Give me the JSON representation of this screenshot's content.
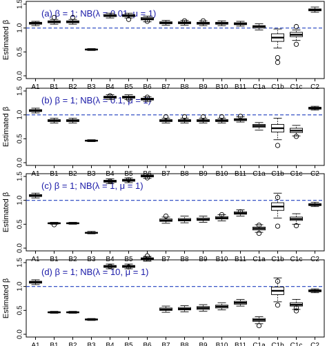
{
  "chart_data": [
    {
      "type": "boxplot",
      "title": "(a) β = 1; NB(λ = 0.01, μ = 1)",
      "ylabel": "Estimated β",
      "ylim": [
        0.0,
        1.5
      ],
      "yticks": [
        0.0,
        0.5,
        1.0,
        1.5
      ],
      "yticklabels": [
        "0.0",
        "0.5",
        "1.0",
        "1.5"
      ],
      "reference_line": 1.0,
      "categories": [
        "A1",
        "B1",
        "B2",
        "B3",
        "B4",
        "B5",
        "B6",
        "B7",
        "B8",
        "B9",
        "B10",
        "B11",
        "C1a",
        "C1b",
        "C1c",
        "C2"
      ],
      "boxes": [
        {
          "q1": 1.08,
          "med": 1.1,
          "q3": 1.12,
          "wlo": 1.05,
          "whi": 1.14,
          "out": []
        },
        {
          "q1": 1.11,
          "med": 1.13,
          "q3": 1.15,
          "wlo": 1.08,
          "whi": 1.18,
          "out": [
            1.22
          ]
        },
        {
          "q1": 1.11,
          "med": 1.13,
          "q3": 1.15,
          "wlo": 1.08,
          "whi": 1.18,
          "out": [
            1.22
          ]
        },
        {
          "q1": 0.54,
          "med": 0.55,
          "q3": 0.56,
          "wlo": 0.53,
          "whi": 0.57,
          "out": []
        },
        {
          "q1": 1.24,
          "med": 1.26,
          "q3": 1.28,
          "wlo": 1.21,
          "whi": 1.31,
          "out": []
        },
        {
          "q1": 1.24,
          "med": 1.26,
          "q3": 1.28,
          "wlo": 1.21,
          "whi": 1.31,
          "out": [
            1.18
          ]
        },
        {
          "q1": 1.17,
          "med": 1.19,
          "q3": 1.22,
          "wlo": 1.13,
          "whi": 1.25,
          "out": [
            1.14
          ]
        },
        {
          "q1": 1.09,
          "med": 1.11,
          "q3": 1.13,
          "wlo": 1.06,
          "whi": 1.16,
          "out": []
        },
        {
          "q1": 1.09,
          "med": 1.11,
          "q3": 1.13,
          "wlo": 1.06,
          "whi": 1.16,
          "out": [
            1.15
          ]
        },
        {
          "q1": 1.08,
          "med": 1.1,
          "q3": 1.12,
          "wlo": 1.05,
          "whi": 1.15,
          "out": [
            1.15
          ]
        },
        {
          "q1": 1.08,
          "med": 1.1,
          "q3": 1.12,
          "wlo": 1.05,
          "whi": 1.15,
          "out": []
        },
        {
          "q1": 1.07,
          "med": 1.09,
          "q3": 1.11,
          "wlo": 1.04,
          "whi": 1.14,
          "out": []
        },
        {
          "q1": 1.0,
          "med": 1.03,
          "q3": 1.05,
          "wlo": 0.96,
          "whi": 1.09,
          "out": []
        },
        {
          "q1": 0.72,
          "med": 0.8,
          "q3": 0.88,
          "wlo": 0.58,
          "whi": 0.98,
          "out": [
            0.38,
            0.28
          ]
        },
        {
          "q1": 0.82,
          "med": 0.86,
          "q3": 0.91,
          "wlo": 0.74,
          "whi": 0.96,
          "out": [
            1.03,
            0.66
          ]
        },
        {
          "q1": 1.36,
          "med": 1.38,
          "q3": 1.4,
          "wlo": 1.33,
          "whi": 1.44,
          "out": []
        }
      ]
    },
    {
      "type": "boxplot",
      "title": "(b) β = 1; NB(λ = 0.1, μ = 1)",
      "ylabel": "Estimated β",
      "ylim": [
        0.0,
        1.5
      ],
      "yticks": [
        0.0,
        0.5,
        1.0,
        1.5
      ],
      "yticklabels": [
        "0.0",
        "0.5",
        "1.0",
        "1.5"
      ],
      "reference_line": 1.0,
      "categories": [
        "A1",
        "B1",
        "B2",
        "B3",
        "B4",
        "B5",
        "B6",
        "B7",
        "B8",
        "B9",
        "B10",
        "B11",
        "C1a",
        "C1b",
        "C1c",
        "C2"
      ],
      "boxes": [
        {
          "q1": 1.07,
          "med": 1.09,
          "q3": 1.11,
          "wlo": 1.04,
          "whi": 1.14,
          "out": []
        },
        {
          "q1": 0.86,
          "med": 0.88,
          "q3": 0.9,
          "wlo": 0.83,
          "whi": 0.93,
          "out": []
        },
        {
          "q1": 0.86,
          "med": 0.88,
          "q3": 0.9,
          "wlo": 0.83,
          "whi": 0.93,
          "out": []
        },
        {
          "q1": 0.45,
          "med": 0.46,
          "q3": 0.47,
          "wlo": 0.44,
          "whi": 0.48,
          "out": []
        },
        {
          "q1": 1.35,
          "med": 1.37,
          "q3": 1.39,
          "wlo": 1.32,
          "whi": 1.42,
          "out": [
            1.4
          ]
        },
        {
          "q1": 1.35,
          "med": 1.37,
          "q3": 1.39,
          "wlo": 1.32,
          "whi": 1.42,
          "out": [
            1.33
          ]
        },
        {
          "q1": 1.31,
          "med": 1.33,
          "q3": 1.35,
          "wlo": 1.28,
          "whi": 1.38,
          "out": [
            1.37
          ]
        },
        {
          "q1": 0.86,
          "med": 0.88,
          "q3": 0.9,
          "wlo": 0.83,
          "whi": 0.93,
          "out": [
            0.96
          ]
        },
        {
          "q1": 0.86,
          "med": 0.88,
          "q3": 0.9,
          "wlo": 0.83,
          "whi": 0.93,
          "out": [
            0.96
          ]
        },
        {
          "q1": 0.86,
          "med": 0.88,
          "q3": 0.9,
          "wlo": 0.83,
          "whi": 0.93,
          "out": [
            0.96
          ]
        },
        {
          "q1": 0.86,
          "med": 0.88,
          "q3": 0.9,
          "wlo": 0.83,
          "whi": 0.93,
          "out": [
            0.96
          ]
        },
        {
          "q1": 0.88,
          "med": 0.9,
          "q3": 0.92,
          "wlo": 0.85,
          "whi": 0.96,
          "out": [
            0.97
          ]
        },
        {
          "q1": 0.74,
          "med": 0.77,
          "q3": 0.8,
          "wlo": 0.68,
          "whi": 0.84,
          "out": []
        },
        {
          "q1": 0.64,
          "med": 0.72,
          "q3": 0.8,
          "wlo": 0.48,
          "whi": 0.93,
          "out": [
            0.36
          ]
        },
        {
          "q1": 0.63,
          "med": 0.67,
          "q3": 0.72,
          "wlo": 0.56,
          "whi": 0.78,
          "out": [
            0.55
          ]
        },
        {
          "q1": 1.12,
          "med": 1.14,
          "q3": 1.16,
          "wlo": 1.1,
          "whi": 1.18,
          "out": []
        }
      ]
    },
    {
      "type": "boxplot",
      "title": "(c) β = 1; NB(λ = 1, μ = 1)",
      "ylabel": "Estimated β",
      "ylim": [
        0.0,
        1.5
      ],
      "yticks": [
        0.0,
        0.5,
        1.0,
        1.5
      ],
      "yticklabels": [
        "0.0",
        "0.5",
        "1.0",
        "1.5"
      ],
      "reference_line": 1.0,
      "categories": [
        "A1",
        "B1",
        "B2",
        "B3",
        "B4",
        "B5",
        "B6",
        "B7",
        "B8",
        "B9",
        "B10",
        "B11",
        "C1a",
        "C1b",
        "C1c",
        "C2"
      ],
      "boxes": [
        {
          "q1": 1.08,
          "med": 1.1,
          "q3": 1.12,
          "wlo": 1.05,
          "whi": 1.15,
          "out": []
        },
        {
          "q1": 0.51,
          "med": 0.52,
          "q3": 0.53,
          "wlo": 0.5,
          "whi": 0.54,
          "out": [
            0.49
          ]
        },
        {
          "q1": 0.51,
          "med": 0.52,
          "q3": 0.53,
          "wlo": 0.5,
          "whi": 0.54,
          "out": []
        },
        {
          "q1": 0.31,
          "med": 0.32,
          "q3": 0.33,
          "wlo": 0.3,
          "whi": 0.35,
          "out": []
        },
        {
          "q1": 1.38,
          "med": 1.4,
          "q3": 1.42,
          "wlo": 1.35,
          "whi": 1.45,
          "out": [
            1.4
          ]
        },
        {
          "q1": 1.4,
          "med": 1.42,
          "q3": 1.44,
          "wlo": 1.37,
          "whi": 1.47,
          "out": [
            1.43
          ]
        },
        {
          "q1": 1.49,
          "med": 1.51,
          "q3": 1.53,
          "wlo": 1.46,
          "whi": 1.56,
          "out": [
            1.47
          ]
        },
        {
          "q1": 0.56,
          "med": 0.58,
          "q3": 0.61,
          "wlo": 0.52,
          "whi": 0.65,
          "out": [
            0.67
          ]
        },
        {
          "q1": 0.57,
          "med": 0.59,
          "q3": 0.62,
          "wlo": 0.53,
          "whi": 0.67,
          "out": []
        },
        {
          "q1": 0.58,
          "med": 0.6,
          "q3": 0.63,
          "wlo": 0.54,
          "whi": 0.67,
          "out": []
        },
        {
          "q1": 0.61,
          "med": 0.63,
          "q3": 0.66,
          "wlo": 0.57,
          "whi": 0.7,
          "out": [
            0.7
          ]
        },
        {
          "q1": 0.71,
          "med": 0.73,
          "q3": 0.76,
          "wlo": 0.67,
          "whi": 0.8,
          "out": [
            0.76
          ]
        },
        {
          "q1": 0.38,
          "med": 0.41,
          "q3": 0.44,
          "wlo": 0.33,
          "whi": 0.49,
          "out": [
            0.48,
            0.31
          ]
        },
        {
          "q1": 0.79,
          "med": 0.87,
          "q3": 0.95,
          "wlo": 0.63,
          "whi": 1.15,
          "out": [
            1.06,
            0.46
          ]
        },
        {
          "q1": 0.58,
          "med": 0.61,
          "q3": 0.65,
          "wlo": 0.5,
          "whi": 0.72,
          "out": [
            0.47
          ]
        },
        {
          "q1": 0.89,
          "med": 0.91,
          "q3": 0.93,
          "wlo": 0.87,
          "whi": 0.96,
          "out": []
        }
      ]
    },
    {
      "type": "boxplot",
      "title": "(d) β = 1; NB(λ = 10, μ = 1)",
      "ylabel": "Estimated β",
      "ylim": [
        0.0,
        1.5
      ],
      "yticks": [
        0.0,
        0.5,
        1.0,
        1.5
      ],
      "yticklabels": [
        "0.0",
        "0.5",
        "1.0",
        "1.5"
      ],
      "reference_line": 1.0,
      "categories": [
        "A1",
        "B1",
        "B2",
        "B3",
        "B4",
        "B5",
        "B6",
        "B7",
        "B8",
        "B9",
        "B10",
        "B11",
        "C1a",
        "C1b",
        "C1c",
        "C2"
      ],
      "boxes": [
        {
          "q1": 1.07,
          "med": 1.09,
          "q3": 1.11,
          "wlo": 1.04,
          "whi": 1.14,
          "out": []
        },
        {
          "q1": 0.45,
          "med": 0.46,
          "q3": 0.47,
          "wlo": 0.44,
          "whi": 0.48,
          "out": []
        },
        {
          "q1": 0.45,
          "med": 0.46,
          "q3": 0.47,
          "wlo": 0.44,
          "whi": 0.48,
          "out": []
        },
        {
          "q1": 0.3,
          "med": 0.31,
          "q3": 0.32,
          "wlo": 0.29,
          "whi": 0.33,
          "out": []
        },
        {
          "q1": 1.4,
          "med": 1.42,
          "q3": 1.44,
          "wlo": 1.37,
          "whi": 1.47,
          "out": [
            1.42
          ]
        },
        {
          "q1": 1.4,
          "med": 1.42,
          "q3": 1.44,
          "wlo": 1.37,
          "whi": 1.47,
          "out": [
            1.41
          ]
        },
        {
          "q1": 1.56,
          "med": 1.58,
          "q3": 1.6,
          "wlo": 1.53,
          "whi": 1.63,
          "out": [
            1.64
          ]
        },
        {
          "q1": 0.5,
          "med": 0.52,
          "q3": 0.55,
          "wlo": 0.46,
          "whi": 0.59,
          "out": []
        },
        {
          "q1": 0.51,
          "med": 0.53,
          "q3": 0.56,
          "wlo": 0.47,
          "whi": 0.6,
          "out": []
        },
        {
          "q1": 0.52,
          "med": 0.55,
          "q3": 0.58,
          "wlo": 0.48,
          "whi": 0.62,
          "out": []
        },
        {
          "q1": 0.55,
          "med": 0.58,
          "q3": 0.61,
          "wlo": 0.51,
          "whi": 0.66,
          "out": []
        },
        {
          "q1": 0.63,
          "med": 0.66,
          "q3": 0.69,
          "wlo": 0.59,
          "whi": 0.73,
          "out": []
        },
        {
          "q1": 0.27,
          "med": 0.3,
          "q3": 0.33,
          "wlo": 0.22,
          "whi": 0.37,
          "out": [
            0.18
          ]
        },
        {
          "q1": 0.83,
          "med": 0.91,
          "q3": 0.99,
          "wlo": 0.68,
          "whi": 1.18,
          "out": [
            1.11,
            0.61
          ]
        },
        {
          "q1": 0.59,
          "med": 0.62,
          "q3": 0.66,
          "wlo": 0.52,
          "whi": 0.73,
          "out": [
            0.55,
            0.49
          ]
        },
        {
          "q1": 0.89,
          "med": 0.91,
          "q3": 0.93,
          "wlo": 0.87,
          "whi": 0.95,
          "out": []
        }
      ]
    }
  ],
  "colors": {
    "reference_line": "#1f3fbf",
    "title_text": "#1a1aa8",
    "box_fill": "#ffffff",
    "stroke": "#000000"
  }
}
